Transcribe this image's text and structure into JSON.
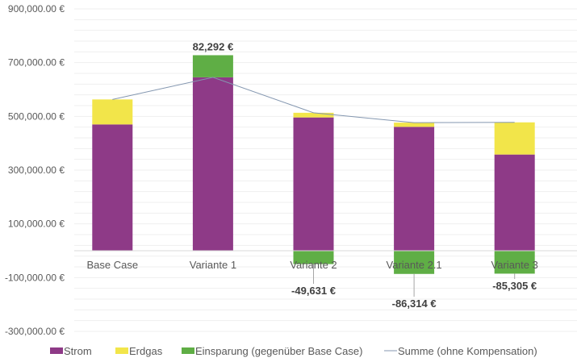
{
  "chart_data": {
    "type": "bar",
    "stacked": true,
    "title": "",
    "xlabel": "",
    "ylabel": "",
    "ylim": [
      -300000,
      900000
    ],
    "y_major_step": 200000,
    "y_minor_step": 40000,
    "grid": true,
    "legend_position": "bottom",
    "categories": [
      "Base Case",
      "Variante 1",
      "Variante 2",
      "Variante 2.1",
      "Variante 3"
    ],
    "y_tick_labels": [
      "900,000.00 €",
      "700,000.00 €",
      "500,000.00 €",
      "300,000.00 €",
      "100,000.00 €",
      "-100,000.00 €",
      "-300,000.00 €"
    ],
    "y_tick_values": [
      900000,
      700000,
      500000,
      300000,
      100000,
      -100000,
      -300000
    ],
    "series": [
      {
        "name": "Strom",
        "kind": "bar",
        "color": "#8E3A87",
        "values": [
          470000,
          645292,
          496000,
          461000,
          358000
        ]
      },
      {
        "name": "Erdgas",
        "kind": "bar",
        "color": "#F2E54A",
        "values": [
          93000,
          0,
          17369,
          15686,
          119695
        ]
      },
      {
        "name": "Einsparung (gegenüber Base Case)",
        "kind": "bar",
        "color": "#5FAE45",
        "values": [
          0,
          82292,
          -49631,
          -86314,
          -85305
        ]
      },
      {
        "name": "Summe (ohne Kompensation)",
        "kind": "line",
        "color": "#8497B0",
        "values": [
          563000,
          645292,
          513369,
          476686,
          477695
        ]
      }
    ],
    "data_labels": [
      {
        "category": "Variante 1",
        "text": "82,292 €"
      },
      {
        "category": "Variante 2",
        "text": "-49,631 €"
      },
      {
        "category": "Variante 2.1",
        "text": "-86,314 €"
      },
      {
        "category": "Variante 3",
        "text": "-85,305 €"
      }
    ]
  }
}
